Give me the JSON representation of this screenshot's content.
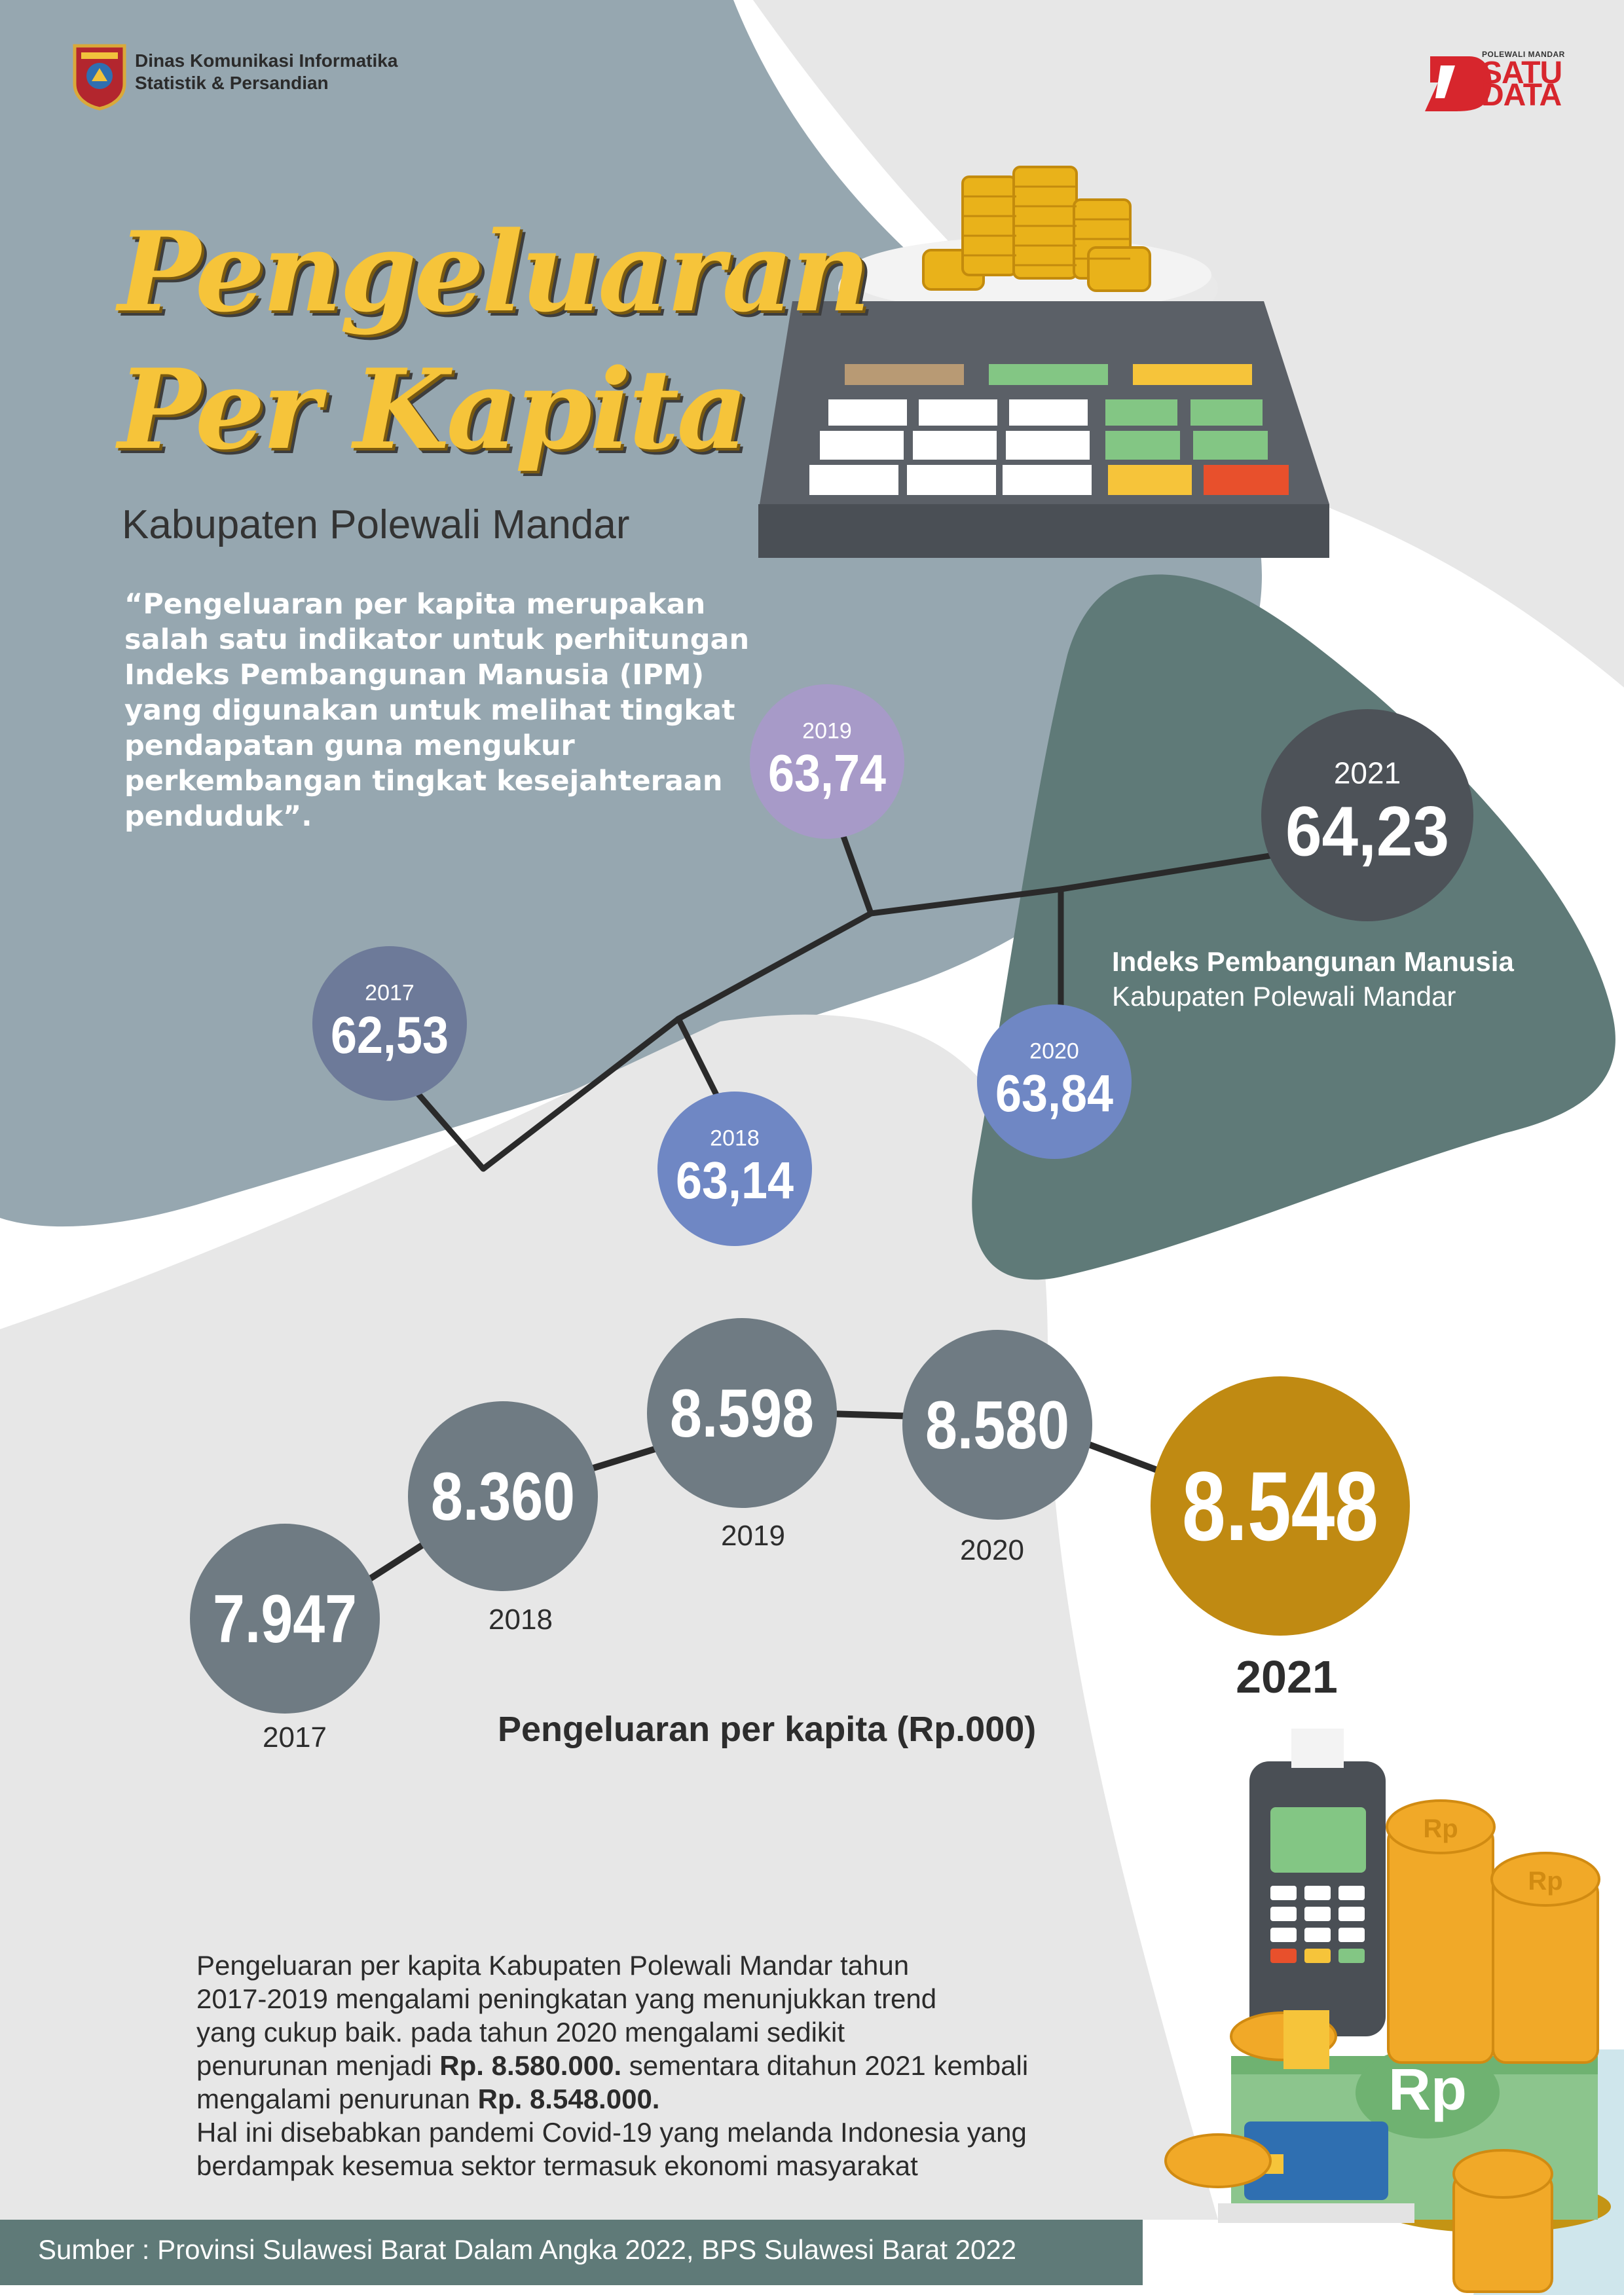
{
  "header": {
    "org_line1": "Dinas Komunikasi Informatika",
    "org_line2": "Statistik & Persandian",
    "satudata_small": "POLEWALI MANDAR",
    "satudata_word1": "SATU",
    "satudata_word2": "DATA"
  },
  "title": {
    "line1": "Pengeluaran",
    "line2": "Per Kapita",
    "subtitle": "Kabupaten Polewali Mandar"
  },
  "quote": "“Pengeluaran per kapita merupakan salah satu indikator untuk perhitungan Indeks Pembangunan Manusia (IPM) yang digunakan untuk melihat tingkat pendapatan guna mengukur perkembangan tingkat kesejahteraan penduduk”.",
  "ipm_caption": {
    "title": "Indeks Pembangunan Manusia",
    "subtitle": "Kabupaten Polewali Mandar"
  },
  "pkc_caption": "Pengeluaran per kapita (Rp.000)",
  "body": {
    "line1": "Pengeluaran per kapita Kabupaten Polewali Mandar tahun",
    "line2": "2017-2019 mengalami peningkatan yang menunjukkan trend",
    "line3": "yang cukup baik. pada tahun 2020 mengalami sedikit",
    "line4_pre": "penurunan menjadi ",
    "line4_bold": "Rp. 8.580.000.",
    "line4_post": " sementara ditahun 2021 kembali",
    "line5_pre": "mengalami penurunan ",
    "line5_bold": "Rp. 8.548.000.",
    "line6": "Hal ini disebabkan pandemi Covid-19 yang melanda Indonesia yang",
    "line7": "berdampak kesemua sektor termasuk ekonomi masyarakat"
  },
  "footer": "Sumber : Provinsi Sulawesi Barat Dalam Angka 2022, BPS Sulawesi Barat 2022",
  "illustration": {
    "rp_label": "Rp",
    "coin_label": "Rp"
  },
  "chart_data": [
    {
      "type": "scatter",
      "title": "Indeks Pembangunan Manusia",
      "x": [
        "2017",
        "2018",
        "2019",
        "2020",
        "2021"
      ],
      "labels": [
        "62,53",
        "63,14",
        "63,74",
        "63,84",
        "64,23"
      ],
      "values": [
        62.53,
        63.14,
        63.74,
        63.84,
        64.23
      ],
      "colors": [
        "#6d7a99",
        "#6f87c4",
        "#a79ac8",
        "#6f87c4",
        "#4d5258"
      ]
    },
    {
      "type": "line",
      "title": "Pengeluaran per kapita (Rp.000)",
      "x": [
        "2017",
        "2018",
        "2019",
        "2020",
        "2021"
      ],
      "labels": [
        "7.947",
        "8.360",
        "8.598",
        "8.580",
        "8.548"
      ],
      "values": [
        7947,
        8360,
        8598,
        8580,
        8548
      ],
      "colors": [
        "#6f7b83",
        "#6f7b83",
        "#6f7b83",
        "#6f7b83",
        "#c08a12"
      ]
    }
  ]
}
